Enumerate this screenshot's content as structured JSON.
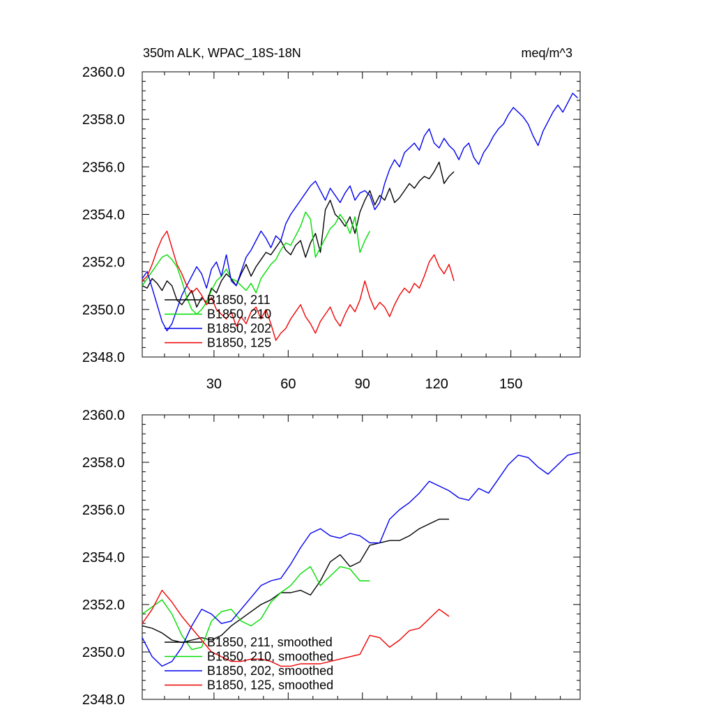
{
  "header": {
    "left_title": "350m ALK, WPAC_18S-18N",
    "right_title": "meq/m^3"
  },
  "chart_data": [
    {
      "type": "line",
      "title": "350m ALK, WPAC_18S-18N",
      "units": "meq/m^3",
      "xlim": [
        1,
        178
      ],
      "ylim": [
        2348.0,
        2360.0
      ],
      "x_ticks": [
        30,
        60,
        90,
        120,
        150
      ],
      "x_tick_labels": [
        "30",
        "60",
        "90",
        "120",
        "150"
      ],
      "y_ticks": [
        2348.0,
        2350.0,
        2352.0,
        2354.0,
        2356.0,
        2358.0,
        2360.0
      ],
      "y_tick_labels": [
        "2348.0",
        "2350.0",
        "2352.0",
        "2354.0",
        "2356.0",
        "2358.0",
        "2360.0"
      ],
      "grid": false,
      "legend_position": "bottom-left",
      "series": [
        {
          "name": "B1850, 211",
          "color": "#000000",
          "x": [
            1,
            3,
            5,
            7,
            9,
            11,
            13,
            15,
            17,
            19,
            21,
            23,
            25,
            27,
            29,
            31,
            33,
            35,
            37,
            39,
            41,
            43,
            45,
            47,
            49,
            51,
            53,
            55,
            57,
            59,
            61,
            63,
            65,
            67,
            69,
            71,
            73,
            75,
            77,
            79,
            81,
            83,
            85,
            87,
            89,
            91,
            93,
            95,
            97,
            99,
            101,
            103,
            105,
            107,
            109,
            111,
            113,
            115,
            117,
            119,
            121,
            123,
            125,
            127
          ],
          "y": [
            2351.0,
            2350.9,
            2351.3,
            2351.1,
            2350.8,
            2351.2,
            2351.0,
            2350.4,
            2350.2,
            2350.5,
            2350.8,
            2350.1,
            2350.5,
            2350.3,
            2350.9,
            2350.7,
            2351.2,
            2351.5,
            2351.3,
            2351.0,
            2351.5,
            2351.9,
            2351.4,
            2351.8,
            2352.1,
            2352.4,
            2352.3,
            2352.6,
            2352.9,
            2352.5,
            2352.3,
            2352.7,
            2352.9,
            2352.2,
            2352.8,
            2353.2,
            2352.4,
            2354.2,
            2354.6,
            2354.0,
            2353.8,
            2353.5,
            2353.9,
            2353.2,
            2354.1,
            2354.6,
            2355.0,
            2354.4,
            2354.8,
            2354.6,
            2355.1,
            2354.5,
            2354.7,
            2355.0,
            2355.3,
            2355.1,
            2355.4,
            2355.6,
            2355.5,
            2355.8,
            2356.2,
            2355.3,
            2355.6,
            2355.8
          ]
        },
        {
          "name": "B1850, 210",
          "color": "#00dd00",
          "x": [
            1,
            3,
            5,
            7,
            9,
            11,
            13,
            15,
            17,
            19,
            21,
            23,
            25,
            27,
            29,
            31,
            33,
            35,
            37,
            39,
            41,
            43,
            45,
            47,
            49,
            51,
            53,
            55,
            57,
            59,
            61,
            63,
            65,
            67,
            69,
            71,
            73,
            75,
            77,
            79,
            81,
            83,
            85,
            87,
            89,
            91,
            93
          ],
          "y": [
            2351.0,
            2351.3,
            2351.6,
            2351.9,
            2352.2,
            2352.3,
            2352.1,
            2351.8,
            2351.2,
            2350.5,
            2350.0,
            2349.8,
            2350.0,
            2350.3,
            2350.8,
            2351.2,
            2351.4,
            2351.7,
            2351.3,
            2351.2,
            2351.0,
            2350.8,
            2351.1,
            2350.7,
            2351.3,
            2351.6,
            2351.9,
            2352.1,
            2352.5,
            2352.8,
            2352.7,
            2353.1,
            2353.5,
            2354.1,
            2353.8,
            2352.2,
            2352.6,
            2353.0,
            2353.4,
            2353.6,
            2354.0,
            2353.7,
            2353.2,
            2353.9,
            2352.4,
            2352.9,
            2353.3
          ]
        },
        {
          "name": "B1850, 202",
          "color": "#0000ee",
          "x": [
            1,
            3,
            5,
            7,
            9,
            11,
            13,
            15,
            17,
            19,
            21,
            23,
            25,
            27,
            29,
            31,
            33,
            35,
            37,
            39,
            41,
            43,
            45,
            47,
            49,
            51,
            53,
            55,
            57,
            59,
            61,
            63,
            65,
            67,
            69,
            71,
            73,
            75,
            77,
            79,
            81,
            83,
            85,
            87,
            89,
            91,
            93,
            95,
            97,
            99,
            101,
            103,
            105,
            107,
            109,
            111,
            113,
            115,
            117,
            119,
            121,
            123,
            125,
            127,
            129,
            131,
            133,
            135,
            137,
            139,
            141,
            143,
            145,
            147,
            149,
            151,
            153,
            155,
            157,
            159,
            161,
            163,
            165,
            167,
            169,
            171,
            173,
            175,
            177
          ],
          "y": [
            2351.3,
            2351.6,
            2350.9,
            2350.2,
            2349.5,
            2349.1,
            2349.4,
            2350.0,
            2350.6,
            2351.0,
            2351.4,
            2351.8,
            2351.5,
            2350.9,
            2351.7,
            2352.0,
            2351.4,
            2352.3,
            2351.2,
            2351.0,
            2351.6,
            2352.2,
            2352.5,
            2352.9,
            2353.3,
            2353.0,
            2352.6,
            2353.1,
            2352.9,
            2353.6,
            2354.0,
            2354.3,
            2354.6,
            2354.9,
            2355.2,
            2355.4,
            2355.0,
            2354.6,
            2355.1,
            2354.8,
            2354.5,
            2354.9,
            2355.2,
            2354.6,
            2354.9,
            2355.0,
            2354.8,
            2354.2,
            2354.5,
            2355.3,
            2355.9,
            2356.3,
            2356.0,
            2356.6,
            2356.8,
            2357.0,
            2356.7,
            2357.3,
            2357.6,
            2357.0,
            2356.8,
            2357.2,
            2356.9,
            2356.7,
            2356.3,
            2356.8,
            2357.0,
            2356.4,
            2356.1,
            2356.6,
            2356.9,
            2357.3,
            2357.6,
            2357.8,
            2358.2,
            2358.5,
            2358.3,
            2358.1,
            2357.8,
            2357.3,
            2356.9,
            2357.5,
            2357.9,
            2358.3,
            2358.6,
            2358.3,
            2358.7,
            2359.1,
            2358.9
          ]
        },
        {
          "name": "B1850, 125",
          "color": "#ee0000",
          "x": [
            1,
            3,
            5,
            7,
            9,
            11,
            13,
            15,
            17,
            19,
            21,
            23,
            25,
            27,
            29,
            31,
            33,
            35,
            37,
            39,
            41,
            43,
            45,
            47,
            49,
            51,
            53,
            55,
            57,
            59,
            61,
            63,
            65,
            67,
            69,
            71,
            73,
            75,
            77,
            79,
            81,
            83,
            85,
            87,
            89,
            91,
            93,
            95,
            97,
            99,
            101,
            103,
            105,
            107,
            109,
            111,
            113,
            115,
            117,
            119,
            121,
            123,
            125,
            127
          ],
          "y": [
            2351.2,
            2351.4,
            2351.9,
            2352.5,
            2353.0,
            2353.3,
            2352.6,
            2351.9,
            2351.5,
            2351.0,
            2350.7,
            2350.9,
            2350.6,
            2350.2,
            2350.5,
            2350.0,
            2349.8,
            2349.6,
            2349.9,
            2349.3,
            2349.7,
            2349.4,
            2349.9,
            2350.1,
            2349.6,
            2350.0,
            2349.4,
            2348.7,
            2349.0,
            2349.2,
            2349.6,
            2349.9,
            2350.2,
            2349.7,
            2349.4,
            2349.0,
            2349.5,
            2349.8,
            2350.1,
            2349.6,
            2349.3,
            2349.8,
            2350.2,
            2349.9,
            2350.4,
            2351.2,
            2350.5,
            2350.0,
            2350.3,
            2350.1,
            2349.7,
            2350.2,
            2350.6,
            2350.9,
            2350.7,
            2351.1,
            2350.9,
            2351.4,
            2352.0,
            2352.3,
            2351.8,
            2351.5,
            2351.9,
            2351.2
          ]
        }
      ]
    },
    {
      "type": "line",
      "xlim": [
        1,
        178
      ],
      "ylim": [
        2348.0,
        2360.0
      ],
      "x_ticks": [
        30,
        60,
        90,
        120,
        150
      ],
      "y_ticks": [
        2348.0,
        2350.0,
        2352.0,
        2354.0,
        2356.0,
        2358.0,
        2360.0
      ],
      "y_tick_labels": [
        "2348.0",
        "2350.0",
        "2352.0",
        "2354.0",
        "2356.0",
        "2358.0",
        "2360.0"
      ],
      "grid": false,
      "legend_position": "bottom-left",
      "series": [
        {
          "name": "B1850, 211, smoothed",
          "color": "#000000",
          "x": [
            1,
            5,
            9,
            13,
            17,
            21,
            25,
            29,
            33,
            37,
            41,
            45,
            49,
            53,
            57,
            61,
            65,
            69,
            73,
            77,
            81,
            85,
            89,
            93,
            97,
            101,
            105,
            109,
            113,
            117,
            121,
            125
          ],
          "y": [
            2351.1,
            2351.0,
            2350.8,
            2350.5,
            2350.4,
            2350.5,
            2350.6,
            2350.5,
            2350.7,
            2351.1,
            2351.4,
            2351.7,
            2352.0,
            2352.2,
            2352.5,
            2352.5,
            2352.6,
            2352.4,
            2353.0,
            2353.8,
            2354.1,
            2353.6,
            2353.8,
            2354.5,
            2354.6,
            2354.7,
            2354.7,
            2354.9,
            2355.2,
            2355.4,
            2355.6,
            2355.6
          ]
        },
        {
          "name": "B1850, 210, smoothed",
          "color": "#00dd00",
          "x": [
            1,
            5,
            9,
            13,
            17,
            21,
            25,
            29,
            33,
            37,
            41,
            45,
            49,
            53,
            57,
            61,
            65,
            69,
            73,
            77,
            81,
            85,
            89,
            93
          ],
          "y": [
            2351.6,
            2351.9,
            2352.2,
            2351.6,
            2350.7,
            2350.1,
            2350.2,
            2351.3,
            2351.7,
            2351.8,
            2351.3,
            2351.1,
            2351.4,
            2352.1,
            2352.5,
            2352.8,
            2353.3,
            2353.6,
            2352.8,
            2353.2,
            2353.6,
            2353.5,
            2353.0,
            2353.0
          ]
        },
        {
          "name": "B1850, 202, smoothed",
          "color": "#0000ee",
          "x": [
            1,
            5,
            9,
            13,
            17,
            21,
            25,
            29,
            33,
            37,
            41,
            45,
            49,
            53,
            57,
            61,
            65,
            69,
            73,
            77,
            81,
            85,
            89,
            93,
            97,
            101,
            105,
            109,
            113,
            117,
            121,
            125,
            129,
            133,
            137,
            141,
            145,
            149,
            153,
            157,
            161,
            165,
            169,
            173,
            177
          ],
          "y": [
            2350.6,
            2349.8,
            2349.4,
            2349.6,
            2350.2,
            2351.1,
            2351.8,
            2351.6,
            2351.2,
            2351.3,
            2351.8,
            2352.3,
            2352.8,
            2353.0,
            2353.1,
            2353.7,
            2354.4,
            2355.0,
            2355.2,
            2354.9,
            2354.8,
            2355.0,
            2354.9,
            2354.6,
            2354.6,
            2355.6,
            2356.0,
            2356.3,
            2356.7,
            2357.2,
            2357.0,
            2356.8,
            2356.5,
            2356.4,
            2356.9,
            2356.7,
            2357.3,
            2357.9,
            2358.3,
            2358.2,
            2357.8,
            2357.5,
            2357.9,
            2358.3,
            2358.4
          ]
        },
        {
          "name": "B1850, 125, smoothed",
          "color": "#ee0000",
          "x": [
            1,
            5,
            9,
            13,
            17,
            21,
            25,
            29,
            33,
            37,
            41,
            45,
            49,
            53,
            57,
            61,
            65,
            69,
            73,
            77,
            81,
            85,
            89,
            93,
            97,
            101,
            105,
            109,
            113,
            117,
            121,
            125
          ],
          "y": [
            2351.2,
            2351.8,
            2352.6,
            2352.1,
            2351.5,
            2351.0,
            2350.5,
            2350.0,
            2349.8,
            2349.6,
            2349.6,
            2349.7,
            2349.7,
            2349.6,
            2349.4,
            2349.4,
            2349.5,
            2349.5,
            2349.5,
            2349.6,
            2349.7,
            2349.8,
            2349.9,
            2350.7,
            2350.6,
            2350.2,
            2350.5,
            2350.9,
            2351.0,
            2351.4,
            2351.8,
            2351.5
          ]
        }
      ]
    }
  ]
}
